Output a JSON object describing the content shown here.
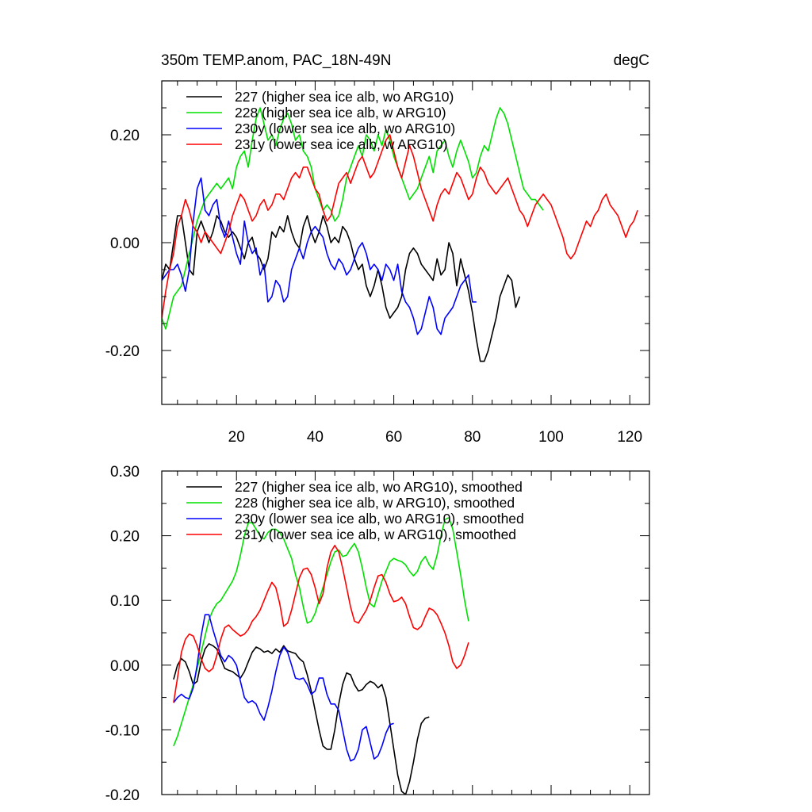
{
  "chart_data": [
    {
      "type": "line",
      "title": "350m TEMP.anom, PAC_18N-49N",
      "units": "degC",
      "xlabel": "",
      "ylabel": "",
      "xlim": [
        1,
        125
      ],
      "ylim": [
        -0.3,
        0.3
      ],
      "xticks": [
        20,
        40,
        60,
        80,
        100,
        120
      ],
      "xtick_labels": [
        "20",
        "40",
        "60",
        "80",
        "100",
        "120"
      ],
      "yticks": [
        -0.2,
        0.0,
        0.2
      ],
      "ytick_labels": [
        "-0.20",
        "0.00",
        "0.20"
      ],
      "legend_position": "top-left",
      "series": [
        {
          "name": "227 (higher sea ice alb, wo ARG10)",
          "color": "#000000",
          "x_start": 1,
          "values": [
            -0.07,
            -0.04,
            -0.05,
            0.0,
            0.05,
            0.05,
            0.0,
            -0.05,
            -0.06,
            0.02,
            0.04,
            0.02,
            0.0,
            0.02,
            0.05,
            0.04,
            0.02,
            0.01,
            0.02,
            0.01,
            -0.01,
            -0.03,
            0.0,
            0.01,
            -0.02,
            -0.03,
            -0.05,
            -0.03,
            0.02,
            0.01,
            0.03,
            0.02,
            0.05,
            0.02,
            0.0,
            -0.01,
            0.03,
            0.05,
            0.02,
            0.0,
            0.02,
            0.05,
            0.03,
            0.0,
            0.01,
            0.0,
            0.03,
            0.02,
            0.0,
            -0.03,
            -0.05,
            -0.04,
            -0.08,
            -0.1,
            -0.08,
            -0.05,
            -0.08,
            -0.12,
            -0.14,
            -0.13,
            -0.12,
            -0.1,
            -0.05,
            -0.02,
            -0.01,
            -0.02,
            -0.04,
            -0.05,
            -0.06,
            -0.07,
            -0.03,
            -0.06,
            -0.05,
            0.0,
            -0.02,
            -0.08,
            -0.03,
            -0.06,
            -0.09,
            -0.13,
            -0.18,
            -0.22,
            -0.22,
            -0.2,
            -0.17,
            -0.14,
            -0.1,
            -0.08,
            -0.06,
            -0.07,
            -0.12,
            -0.1
          ]
        },
        {
          "name": "228 (higher sea ice alb, w ARG10)",
          "color": "#00e000",
          "x_start": 1,
          "values": [
            -0.14,
            -0.16,
            -0.13,
            -0.1,
            -0.09,
            -0.08,
            -0.05,
            -0.02,
            0.01,
            0.04,
            0.06,
            0.08,
            0.09,
            0.1,
            0.11,
            0.1,
            0.11,
            0.12,
            0.1,
            0.14,
            0.16,
            0.17,
            0.14,
            0.19,
            0.23,
            0.25,
            0.22,
            0.19,
            0.2,
            0.18,
            0.21,
            0.23,
            0.24,
            0.22,
            0.19,
            0.2,
            0.17,
            0.16,
            0.14,
            0.1,
            0.08,
            0.06,
            0.07,
            0.06,
            0.04,
            0.05,
            0.08,
            0.12,
            0.14,
            0.16,
            0.18,
            0.16,
            0.2,
            0.19,
            0.17,
            0.2,
            0.18,
            0.21,
            0.19,
            0.16,
            0.14,
            0.12,
            0.1,
            0.08,
            0.09,
            0.1,
            0.12,
            0.14,
            0.16,
            0.13,
            0.17,
            0.18,
            0.19,
            0.16,
            0.14,
            0.17,
            0.19,
            0.17,
            0.15,
            0.12,
            0.13,
            0.16,
            0.18,
            0.17,
            0.2,
            0.23,
            0.25,
            0.24,
            0.22,
            0.19,
            0.16,
            0.13,
            0.1,
            0.09,
            0.08,
            0.08,
            0.07,
            0.06
          ]
        },
        {
          "name": "230y (lower sea ice alb, wo ARG10)",
          "color": "#0000ff",
          "x_start": 1,
          "values": [
            -0.07,
            -0.06,
            -0.05,
            -0.05,
            -0.04,
            -0.06,
            -0.09,
            -0.05,
            0.04,
            0.1,
            0.12,
            0.06,
            0.05,
            0.07,
            0.08,
            0.03,
            0.01,
            0.04,
            0.01,
            -0.02,
            -0.04,
            0.04,
            0.0,
            -0.02,
            -0.01,
            -0.06,
            -0.04,
            -0.11,
            -0.1,
            -0.07,
            -0.08,
            -0.11,
            -0.1,
            -0.05,
            -0.03,
            -0.01,
            -0.03,
            0.0,
            0.02,
            0.03,
            0.02,
            0.01,
            -0.02,
            -0.04,
            -0.05,
            -0.03,
            -0.04,
            -0.06,
            -0.05,
            -0.03,
            -0.01,
            0.0,
            -0.02,
            -0.05,
            -0.04,
            -0.05,
            -0.07,
            -0.04,
            -0.05,
            -0.07,
            -0.04,
            -0.09,
            -0.11,
            -0.12,
            -0.14,
            -0.17,
            -0.16,
            -0.13,
            -0.1,
            -0.12,
            -0.16,
            -0.17,
            -0.14,
            -0.13,
            -0.12,
            -0.1,
            -0.08,
            -0.07,
            -0.06,
            -0.11,
            -0.11
          ]
        },
        {
          "name": "231y (lower sea ice alb, w ARG10)",
          "color": "#ff0000",
          "x_start": 1,
          "values": [
            -0.14,
            -0.09,
            -0.05,
            -0.02,
            0.03,
            0.05,
            0.08,
            0.06,
            0.03,
            0.02,
            0.0,
            0.02,
            0.01,
            0.0,
            -0.01,
            -0.02,
            0.0,
            0.02,
            0.05,
            0.07,
            0.09,
            0.08,
            0.06,
            0.04,
            0.05,
            0.07,
            0.08,
            0.06,
            0.07,
            0.09,
            0.09,
            0.08,
            0.1,
            0.12,
            0.13,
            0.12,
            0.14,
            0.14,
            0.12,
            0.1,
            0.09,
            0.06,
            0.04,
            0.05,
            0.08,
            0.11,
            0.12,
            0.13,
            0.11,
            0.13,
            0.15,
            0.16,
            0.14,
            0.12,
            0.13,
            0.15,
            0.17,
            0.19,
            0.2,
            0.17,
            0.14,
            0.12,
            0.15,
            0.18,
            0.16,
            0.13,
            0.1,
            0.08,
            0.06,
            0.04,
            0.07,
            0.09,
            0.1,
            0.09,
            0.11,
            0.13,
            0.12,
            0.1,
            0.08,
            0.09,
            0.12,
            0.14,
            0.13,
            0.11,
            0.1,
            0.09,
            0.1,
            0.11,
            0.12,
            0.1,
            0.08,
            0.06,
            0.05,
            0.03,
            0.05,
            0.07,
            0.08,
            0.09,
            0.08,
            0.07,
            0.05,
            0.03,
            0.01,
            -0.02,
            -0.03,
            -0.02,
            0.0,
            0.02,
            0.04,
            0.03,
            0.05,
            0.06,
            0.08,
            0.09,
            0.07,
            0.06,
            0.05,
            0.03,
            0.01,
            0.03,
            0.04,
            0.06
          ]
        }
      ]
    },
    {
      "type": "line",
      "title": "",
      "xlabel": "",
      "ylabel": "",
      "xlim": [
        1,
        125
      ],
      "ylim": [
        -0.2,
        0.3
      ],
      "xticks": [
        20,
        40,
        60,
        80,
        100,
        120
      ],
      "xtick_labels": [],
      "yticks": [
        -0.2,
        -0.1,
        0.0,
        0.1,
        0.2,
        0.3
      ],
      "ytick_labels": [
        "-0.20",
        "-0.10",
        "0.00",
        "0.10",
        "0.20",
        "0.30"
      ],
      "legend_position": "top-left",
      "series": [
        {
          "name": "227 (higher sea ice alb, wo ARG10), smoothed",
          "color": "#000000",
          "x_start": 4,
          "values": [
            -0.022,
            0.0,
            0.01,
            0.005,
            -0.01,
            -0.03,
            -0.025,
            0.005,
            0.025,
            0.033,
            0.03,
            0.025,
            0.01,
            -0.005,
            -0.008,
            -0.01,
            -0.015,
            -0.02,
            -0.01,
            0.005,
            0.02,
            0.028,
            0.025,
            0.02,
            0.022,
            0.018,
            0.025,
            0.02,
            0.03,
            0.022,
            0.02,
            0.018,
            0.01,
            0.005,
            -0.015,
            -0.04,
            -0.07,
            -0.1,
            -0.125,
            -0.13,
            -0.13,
            -0.1,
            -0.06,
            -0.03,
            -0.012,
            -0.015,
            -0.03,
            -0.04,
            -0.038,
            -0.03,
            -0.025,
            -0.028,
            -0.035,
            -0.03,
            -0.05,
            -0.09,
            -0.13,
            -0.17,
            -0.195,
            -0.2,
            -0.18,
            -0.15,
            -0.115,
            -0.09,
            -0.082,
            -0.08
          ]
        },
        {
          "name": "228 (higher sea ice alb, w ARG10), smoothed",
          "color": "#00e000",
          "x_start": 4,
          "values": [
            -0.125,
            -0.11,
            -0.09,
            -0.07,
            -0.05,
            -0.03,
            -0.005,
            0.02,
            0.045,
            0.07,
            0.085,
            0.095,
            0.1,
            0.11,
            0.12,
            0.13,
            0.145,
            0.17,
            0.2,
            0.22,
            0.22,
            0.21,
            0.2,
            0.195,
            0.205,
            0.21,
            0.21,
            0.205,
            0.195,
            0.18,
            0.165,
            0.14,
            0.12,
            0.09,
            0.065,
            0.068,
            0.08,
            0.1,
            0.12,
            0.14,
            0.16,
            0.175,
            0.178,
            0.168,
            0.17,
            0.18,
            0.188,
            0.175,
            0.15,
            0.12,
            0.095,
            0.09,
            0.11,
            0.13,
            0.145,
            0.16,
            0.165,
            0.162,
            0.16,
            0.155,
            0.145,
            0.138,
            0.145,
            0.16,
            0.168,
            0.155,
            0.148,
            0.17,
            0.2,
            0.225,
            0.228,
            0.21,
            0.175,
            0.14,
            0.1,
            0.068
          ]
        },
        {
          "name": "230y (lower sea ice alb, wo ARG10), smoothed",
          "color": "#0000ff",
          "x_start": 4,
          "values": [
            -0.058,
            -0.05,
            -0.045,
            -0.05,
            -0.052,
            -0.035,
            0.0,
            0.045,
            0.078,
            0.078,
            0.055,
            0.035,
            0.015,
            0.005,
            0.015,
            0.01,
            0.0,
            -0.025,
            -0.05,
            -0.058,
            -0.055,
            -0.06,
            -0.075,
            -0.085,
            -0.065,
            -0.04,
            -0.01,
            0.015,
            0.028,
            0.02,
            0.0,
            -0.02,
            -0.022,
            -0.02,
            -0.03,
            -0.045,
            -0.04,
            -0.02,
            -0.02,
            -0.045,
            -0.06,
            -0.06,
            -0.07,
            -0.1,
            -0.13,
            -0.148,
            -0.145,
            -0.13,
            -0.1,
            -0.095,
            -0.12,
            -0.145,
            -0.14,
            -0.125,
            -0.105,
            -0.092,
            -0.09
          ]
        },
        {
          "name": "231y (lower sea ice alb, w ARG10), smoothed",
          "color": "#ff0000",
          "x_start": 4,
          "values": [
            -0.058,
            -0.02,
            0.02,
            0.04,
            0.048,
            0.045,
            0.03,
            0.01,
            -0.005,
            -0.01,
            -0.005,
            0.015,
            0.04,
            0.058,
            0.062,
            0.055,
            0.05,
            0.045,
            0.048,
            0.055,
            0.068,
            0.075,
            0.085,
            0.1,
            0.115,
            0.128,
            0.12,
            0.095,
            0.06,
            0.065,
            0.085,
            0.11,
            0.135,
            0.148,
            0.15,
            0.14,
            0.12,
            0.095,
            0.11,
            0.15,
            0.175,
            0.185,
            0.175,
            0.15,
            0.12,
            0.09,
            0.068,
            0.065,
            0.075,
            0.085,
            0.1,
            0.12,
            0.138,
            0.14,
            0.128,
            0.11,
            0.098,
            0.1,
            0.105,
            0.095,
            0.075,
            0.058,
            0.055,
            0.06,
            0.075,
            0.088,
            0.085,
            0.078,
            0.065,
            0.05,
            0.03,
            0.005,
            -0.005,
            0.0,
            0.015,
            0.035
          ]
        }
      ]
    }
  ]
}
